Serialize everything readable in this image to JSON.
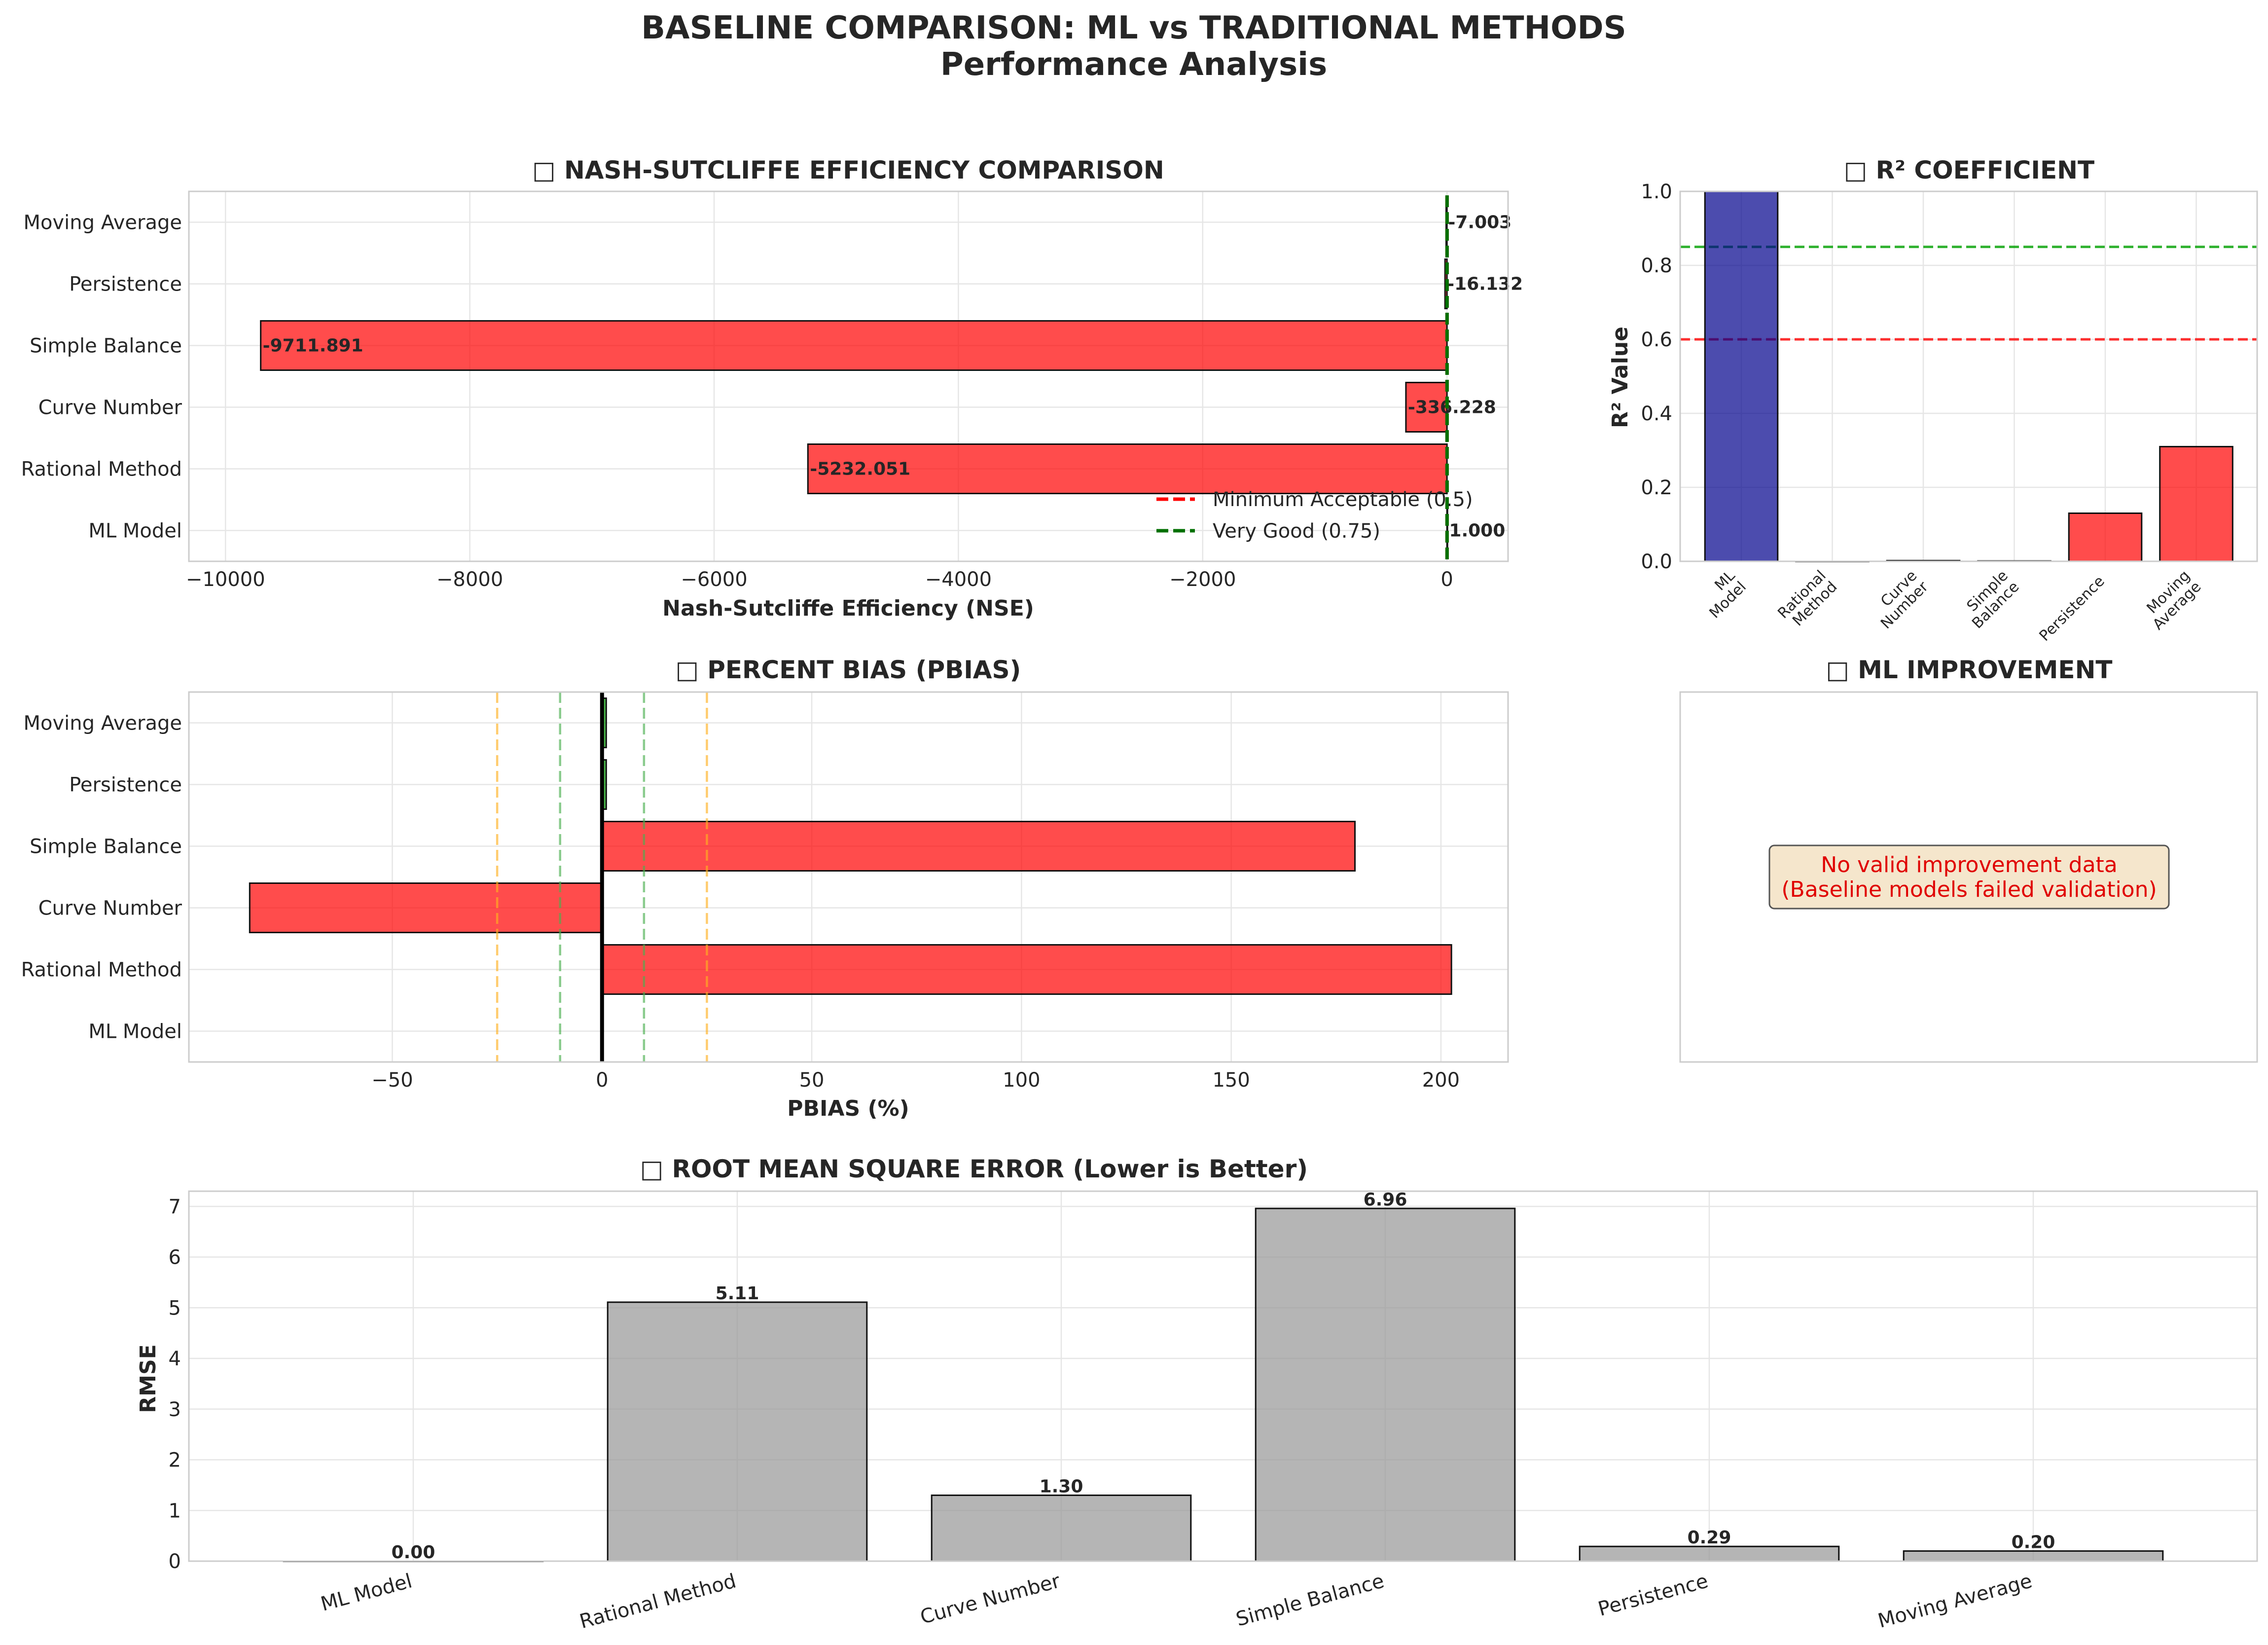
{
  "figure": {
    "title_line1": "BASELINE COMPARISON: ML vs TRADITIONAL METHODS",
    "title_line2": "Performance Analysis"
  },
  "chart_data": [
    {
      "id": "nse",
      "type": "bar",
      "orientation": "horizontal",
      "title": "□ NASH-SUTCLIFFE EFFICIENCY COMPARISON",
      "xlabel": "Nash-Sutcliffe Efficiency (NSE)",
      "ylabel": "",
      "categories": [
        "ML Model",
        "Rational Method",
        "Curve Number",
        "Simple Balance",
        "Persistence",
        "Moving Average"
      ],
      "values": [
        1.0,
        -5232.051,
        -336.228,
        -9711.891,
        -16.132,
        -7.003
      ],
      "value_labels": [
        "1.000",
        "-5232.051",
        "-336.228",
        "-9711.891",
        "-16.132",
        "-7.003"
      ],
      "xlim": [
        -10300,
        500
      ],
      "xticks": [
        -10000,
        -8000,
        -6000,
        -4000,
        -2000,
        0
      ],
      "xtick_labels": [
        "−10000",
        "−8000",
        "−6000",
        "−4000",
        "−2000",
        "0"
      ],
      "reference_lines": [
        {
          "value": 0.5,
          "label": "Minimum Acceptable (0.5)",
          "color": "#ff0000"
        },
        {
          "value": 0.75,
          "label": "Very Good (0.75)",
          "color": "#007000"
        }
      ],
      "legend_position": "lower-right",
      "bar_colors": [
        "#00008b",
        "#ff0000",
        "#ff0000",
        "#ff0000",
        "#ff0000",
        "#ff0000"
      ],
      "grid": true
    },
    {
      "id": "r2",
      "type": "bar",
      "orientation": "vertical",
      "title": "□ R² COEFFICIENT",
      "xlabel": "",
      "ylabel": "R² Value",
      "categories": [
        [
          "ML",
          "Model"
        ],
        [
          "Rational",
          "Method"
        ],
        [
          "Curve",
          "Number"
        ],
        [
          "Simple",
          "Balance"
        ],
        [
          "Persistence"
        ],
        [
          "Moving",
          "Average"
        ]
      ],
      "values": [
        1.0,
        0.0,
        0.002,
        0.001,
        0.13,
        0.31
      ],
      "ylim": [
        0,
        1.0
      ],
      "yticks": [
        0.0,
        0.2,
        0.4,
        0.6,
        0.8,
        1.0
      ],
      "ytick_labels": [
        "0.0",
        "0.2",
        "0.4",
        "0.6",
        "0.8",
        "1.0"
      ],
      "reference_lines": [
        {
          "value": 0.6,
          "color": "#ff0000"
        },
        {
          "value": 0.85,
          "color": "#00a000"
        }
      ],
      "bar_colors": [
        "#00008b",
        "#ff0000",
        "#ff0000",
        "#ff0000",
        "#ff0000",
        "#ff0000"
      ],
      "grid": true
    },
    {
      "id": "pbias",
      "type": "bar",
      "orientation": "horizontal",
      "title": "□ PERCENT BIAS (PBIAS)",
      "xlabel": "PBIAS (%)",
      "ylabel": "",
      "categories": [
        "ML Model",
        "Rational Method",
        "Curve Number",
        "Simple Balance",
        "Persistence",
        "Moving Average"
      ],
      "values": [
        0.0,
        202.5,
        -84.0,
        179.5,
        1.0,
        1.0
      ],
      "xlim": [
        -98.5,
        216
      ],
      "xticks": [
        -50,
        0,
        50,
        100,
        150,
        200
      ],
      "xtick_labels": [
        "−50",
        "0",
        "50",
        "100",
        "150",
        "200"
      ],
      "reference_lines": [
        {
          "value": 0,
          "color": "#000000"
        },
        {
          "value": -10,
          "color": "#4caf50"
        },
        {
          "value": 10,
          "color": "#4caf50"
        },
        {
          "value": -25,
          "color": "#ffb020"
        },
        {
          "value": 25,
          "color": "#ffb020"
        }
      ],
      "bar_colors": [
        "#00008b",
        "#ff0000",
        "#ff0000",
        "#ff0000",
        "#00a000",
        "#00a000"
      ],
      "grid": true
    },
    {
      "id": "rmse",
      "type": "bar",
      "orientation": "vertical",
      "title": "□ ROOT MEAN SQUARE ERROR (Lower is Better)",
      "xlabel": "",
      "ylabel": "RMSE",
      "categories": [
        "ML Model",
        "Rational Method",
        "Curve Number",
        "Simple Balance",
        "Persistence",
        "Moving Average"
      ],
      "values": [
        0.0,
        5.11,
        1.3,
        6.96,
        0.29,
        0.2
      ],
      "value_labels": [
        "0.00",
        "5.11",
        "1.30",
        "6.96",
        "0.29",
        "0.20"
      ],
      "ylim": [
        0,
        7.3
      ],
      "yticks": [
        0,
        1,
        2,
        3,
        4,
        5,
        6,
        7
      ],
      "ytick_labels": [
        "0",
        "1",
        "2",
        "3",
        "4",
        "5",
        "6",
        "7"
      ],
      "bar_color": "#969696",
      "grid": true
    }
  ],
  "improvement_panel": {
    "title": "□ ML IMPROVEMENT",
    "message_line1": "No valid improvement data",
    "message_line2": "(Baseline models failed validation)"
  }
}
